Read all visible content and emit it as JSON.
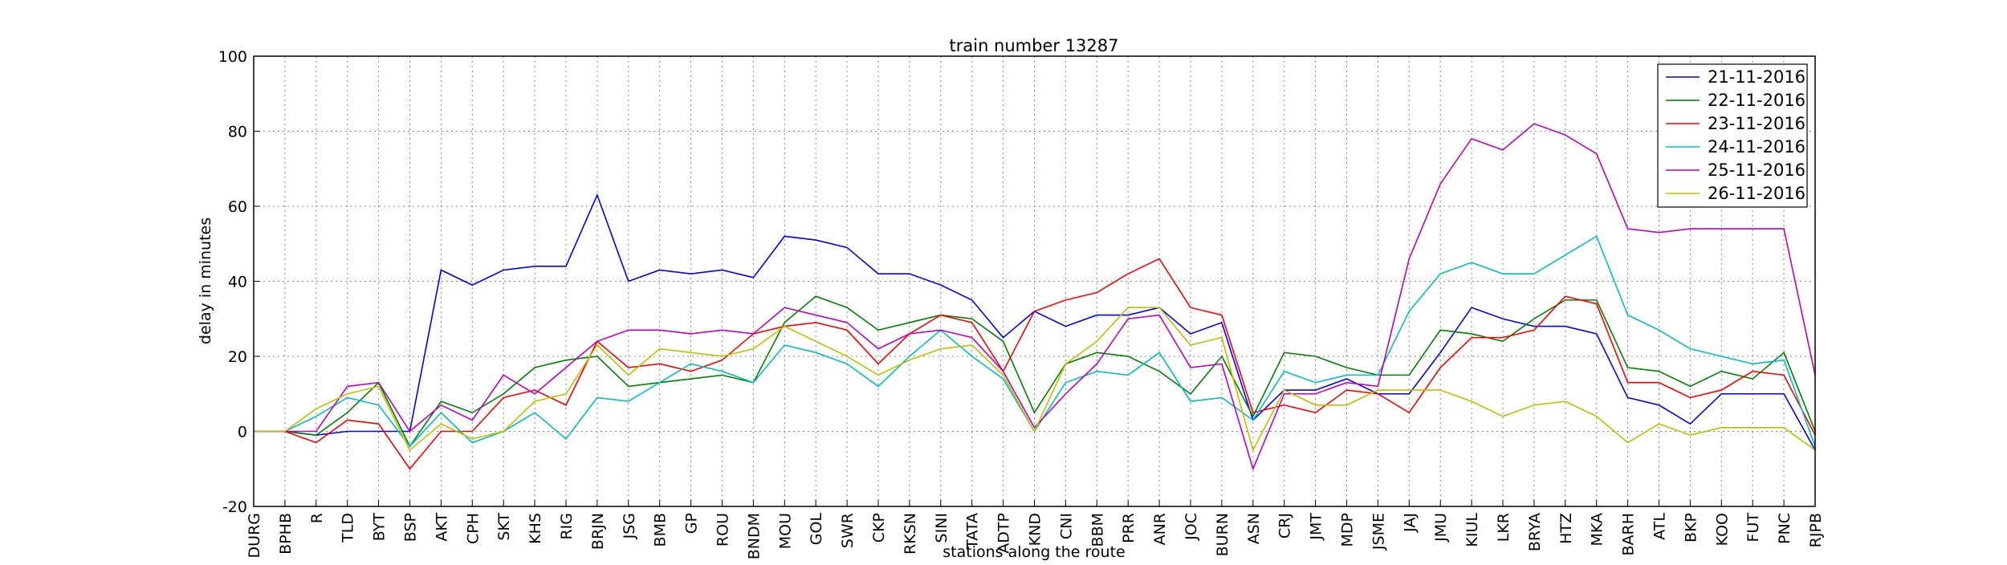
{
  "chart_data": {
    "type": "line",
    "title": "train number 13287",
    "x_label": "stations along the route",
    "y_label": "delay in minutes",
    "categories": [
      "DURG",
      "BPHB",
      "R",
      "TLD",
      "BYT",
      "BSP",
      "AKT",
      "CPH",
      "SKT",
      "KHS",
      "RIG",
      "BRJN",
      "JSG",
      "BMB",
      "GP",
      "ROU",
      "BNDM",
      "MOU",
      "GOL",
      "SWR",
      "CKP",
      "RKSN",
      "SINI",
      "TATA",
      "ADTP",
      "KND",
      "CNI",
      "BBM",
      "PRR",
      "ANR",
      "JOC",
      "BURN",
      "ASN",
      "CRJ",
      "JMT",
      "MDP",
      "JSME",
      "JAJ",
      "JMU",
      "KIUL",
      "LKR",
      "BRYA",
      "HTZ",
      "MKA",
      "BARH",
      "ATL",
      "BKP",
      "KOO",
      "FUT",
      "PNC",
      "RJPB"
    ],
    "series": [
      {
        "name": "21-11-2016",
        "color": "#0000ff",
        "values": [
          0,
          0,
          -1,
          0,
          0,
          0,
          43,
          39,
          43,
          44,
          44,
          63,
          40,
          43,
          42,
          43,
          41,
          52,
          51,
          49,
          42,
          42,
          39,
          35,
          25,
          32,
          28,
          31,
          31,
          33,
          26,
          29,
          3,
          11,
          11,
          14,
          10,
          10,
          21,
          33,
          30,
          28,
          28,
          26,
          9,
          7,
          2,
          10,
          10,
          10,
          -5
        ]
      },
      {
        "name": "22-11-2016",
        "color": "#008000",
        "values": [
          0,
          0,
          -1,
          5,
          13,
          -4,
          8,
          5,
          10,
          17,
          19,
          20,
          12,
          13,
          14,
          15,
          13,
          29,
          36,
          33,
          27,
          29,
          31,
          30,
          24,
          5,
          18,
          21,
          20,
          16,
          10,
          20,
          4,
          21,
          20,
          17,
          15,
          15,
          27,
          26,
          24,
          30,
          35,
          35,
          17,
          16,
          12,
          16,
          14,
          21,
          0
        ]
      },
      {
        "name": "23-11-2016",
        "color": "#ff0000",
        "values": [
          0,
          0,
          -3,
          3,
          2,
          -10,
          0,
          0,
          9,
          11,
          7,
          24,
          17,
          18,
          16,
          19,
          26,
          28,
          29,
          27,
          18,
          26,
          31,
          29,
          16,
          32,
          35,
          37,
          42,
          46,
          33,
          31,
          5,
          7,
          5,
          11,
          10,
          5,
          17,
          25,
          25,
          27,
          36,
          34,
          13,
          13,
          9,
          11,
          16,
          15,
          -1
        ]
      },
      {
        "name": "24-11-2016",
        "color": "#00bfbf",
        "values": [
          0,
          0,
          4,
          9,
          7,
          -4,
          5,
          -3,
          0,
          5,
          -2,
          9,
          8,
          13,
          18,
          16,
          13,
          23,
          21,
          18,
          12,
          20,
          27,
          20,
          14,
          0,
          13,
          16,
          15,
          21,
          8,
          9,
          3,
          16,
          13,
          15,
          15,
          32,
          42,
          45,
          42,
          42,
          47,
          52,
          31,
          27,
          22,
          20,
          18,
          19,
          -4
        ]
      },
      {
        "name": "25-11-2016",
        "color": "#bf00bf",
        "values": [
          0,
          0,
          0,
          12,
          13,
          0,
          7,
          3,
          15,
          10,
          17,
          24,
          27,
          27,
          26,
          27,
          26,
          33,
          31,
          29,
          22,
          26,
          27,
          25,
          16,
          1,
          10,
          18,
          30,
          31,
          17,
          18,
          -10,
          10,
          10,
          13,
          12,
          46,
          66,
          78,
          75,
          82,
          79,
          74,
          54,
          53,
          54,
          54,
          54,
          54,
          15
        ]
      },
      {
        "name": "26-11-2016",
        "color": "#bfbf00",
        "values": [
          0,
          0,
          6,
          10,
          12,
          -5,
          2,
          -2,
          0,
          8,
          10,
          23,
          15,
          22,
          21,
          20,
          22,
          28,
          24,
          20,
          15,
          19,
          22,
          23,
          15,
          0,
          18,
          24,
          33,
          33,
          23,
          25,
          -5,
          11,
          7,
          7,
          11,
          11,
          11,
          8,
          4,
          7,
          8,
          4,
          -3,
          2,
          -1,
          1,
          1,
          1,
          -5
        ]
      }
    ],
    "ylim": [
      -20,
      100
    ],
    "yticks": [
      -20,
      0,
      20,
      40,
      60,
      80,
      100
    ],
    "grid": true,
    "legend": "upper right"
  }
}
